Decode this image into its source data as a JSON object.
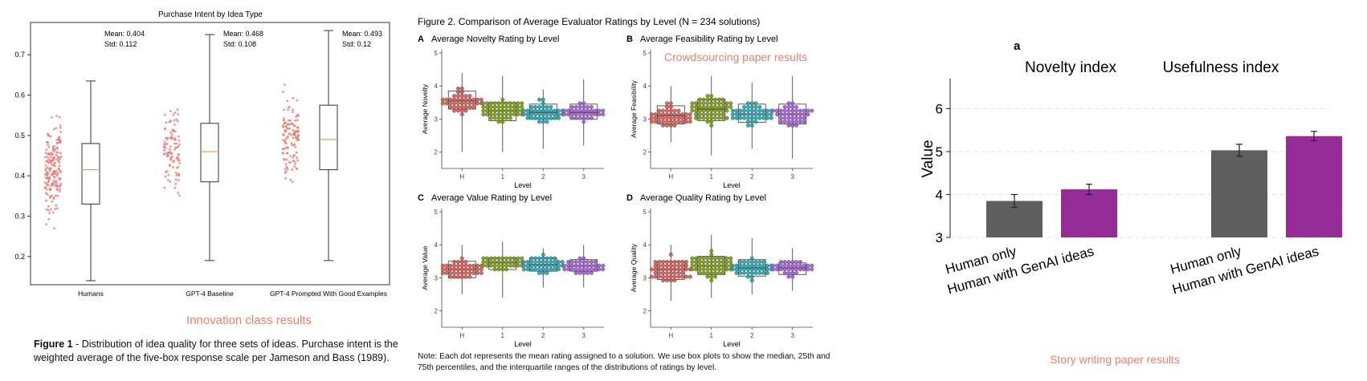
{
  "colors": {
    "red_label": "#e8836b",
    "box_red": "#d9574e",
    "olive": "#7a9a0c",
    "teal": "#1fa5b2",
    "purple": "#a35ad6",
    "gray_bar": "#5f5f5f",
    "magenta_bar": "#952c97",
    "scatter_red": "#e8746c",
    "median_orange": "#f0a050"
  },
  "figure1": {
    "title": "Purchase Intent by Idea Type",
    "label": "Innovation class results",
    "caption_bold": "Figure 1",
    "caption": " - Distribution of idea quality for three sets of ideas. Purchase intent is the weighted average of the five-box response scale per Jameson and Bass (1989).",
    "groups": [
      {
        "name": "Humans",
        "mean": "Mean: 0.404",
        "std": "Std: 0.112"
      },
      {
        "name": "GPT-4 Baseline",
        "mean": "Mean: 0.468",
        "std": "Std: 0.108"
      },
      {
        "name": "GPT-4 Prompted With Good Examples",
        "mean": "Mean: 0.493",
        "std": "Std: 0.12"
      }
    ]
  },
  "figure2": {
    "title": "Figure 2. Comparison of Average Evaluator Ratings by Level (N = 234 solutions)",
    "label": "Crowdsourcing paper results",
    "note": "Note: Each dot represents the mean rating assigned to a solution. We use box plots to show the median, 25th and 75th percentiles, and the interquartile ranges of the distributions of ratings by level.",
    "panels": [
      {
        "letter": "A",
        "title": "Average Novelty Rating by Level",
        "ylabel": "Average Novelty",
        "xlabel": "Level"
      },
      {
        "letter": "B",
        "title": "Average Feasibility Rating by Level",
        "ylabel": "Average Feasibility",
        "xlabel": "Level"
      },
      {
        "letter": "C",
        "title": "Average Value Rating by Level",
        "ylabel": "Average Value",
        "xlabel": "Level"
      },
      {
        "letter": "D",
        "title": "Average Quality Rating by Level",
        "ylabel": "Average Quality",
        "xlabel": "Level"
      }
    ]
  },
  "figure3": {
    "panel_letter": "a",
    "label": "Story writing paper results",
    "ylabel": "Value",
    "groups": [
      {
        "title": "Novelty index"
      },
      {
        "title": "Usefulness index"
      }
    ]
  },
  "chart_data": [
    {
      "type": "box",
      "title": "Purchase Intent by Idea Type",
      "categories": [
        "Humans",
        "GPT-4 Baseline",
        "GPT-4 Prompted With Good Examples"
      ],
      "ylim": [
        0.13,
        0.78
      ],
      "yticks": [
        0.2,
        0.3,
        0.4,
        0.5,
        0.6,
        0.7
      ],
      "boxes": [
        {
          "whisker_low": 0.14,
          "q1": 0.33,
          "median": 0.415,
          "q3": 0.48,
          "whisker_high": 0.635,
          "points_low": 0.15,
          "points_high": 0.64,
          "n": 180
        },
        {
          "whisker_low": 0.19,
          "q1": 0.385,
          "median": 0.46,
          "q3": 0.53,
          "whisker_high": 0.75,
          "points_low": 0.19,
          "points_high": 0.75,
          "n": 100
        },
        {
          "whisker_low": 0.19,
          "q1": 0.415,
          "median": 0.49,
          "q3": 0.575,
          "whisker_high": 0.76,
          "points_low": 0.19,
          "points_high": 0.76,
          "n": 120
        }
      ],
      "grid": false
    },
    {
      "type": "box",
      "panel": "A",
      "categories": [
        "H",
        "1",
        "2",
        "3"
      ],
      "ylim": [
        1.5,
        5.1
      ],
      "yticks": [
        2,
        3,
        4,
        5
      ],
      "boxes": [
        {
          "whisker_low": 2.0,
          "q1": 3.3,
          "median": 3.55,
          "q3": 3.85,
          "whisker_high": 4.4
        },
        {
          "whisker_low": 2.0,
          "q1": 2.95,
          "median": 3.25,
          "q3": 3.5,
          "whisker_high": 4.3
        },
        {
          "whisker_low": 2.1,
          "q1": 3.0,
          "median": 3.2,
          "q3": 3.45,
          "whisker_high": 3.9
        },
        {
          "whisker_low": 2.2,
          "q1": 3.0,
          "median": 3.2,
          "q3": 3.45,
          "whisker_high": 4.2
        }
      ]
    },
    {
      "type": "box",
      "panel": "B",
      "categories": [
        "H",
        "1",
        "2",
        "3"
      ],
      "ylim": [
        1.5,
        5.1
      ],
      "yticks": [
        2,
        3,
        4,
        5
      ],
      "boxes": [
        {
          "whisker_low": 2.3,
          "q1": 2.85,
          "median": 3.1,
          "q3": 3.4,
          "whisker_high": 4.0
        },
        {
          "whisker_low": 1.9,
          "q1": 2.95,
          "median": 3.3,
          "q3": 3.6,
          "whisker_high": 4.3
        },
        {
          "whisker_low": 2.1,
          "q1": 2.9,
          "median": 3.15,
          "q3": 3.45,
          "whisker_high": 4.1
        },
        {
          "whisker_low": 1.8,
          "q1": 2.85,
          "median": 3.15,
          "q3": 3.45,
          "whisker_high": 4.3
        }
      ]
    },
    {
      "type": "box",
      "panel": "C",
      "categories": [
        "H",
        "1",
        "2",
        "3"
      ],
      "ylim": [
        1.5,
        5.1
      ],
      "yticks": [
        2,
        3,
        4,
        5
      ],
      "boxes": [
        {
          "whisker_low": 2.5,
          "q1": 3.0,
          "median": 3.25,
          "q3": 3.5,
          "whisker_high": 4.0
        },
        {
          "whisker_low": 2.4,
          "q1": 3.25,
          "median": 3.45,
          "q3": 3.6,
          "whisker_high": 4.1
        },
        {
          "whisker_low": 2.7,
          "q1": 3.2,
          "median": 3.4,
          "q3": 3.6,
          "whisker_high": 3.9
        },
        {
          "whisker_low": 2.7,
          "q1": 3.2,
          "median": 3.35,
          "q3": 3.55,
          "whisker_high": 4.0
        }
      ]
    },
    {
      "type": "box",
      "panel": "D",
      "categories": [
        "H",
        "1",
        "2",
        "3"
      ],
      "ylim": [
        1.5,
        5.1
      ],
      "yticks": [
        2,
        3,
        4,
        5
      ],
      "boxes": [
        {
          "whisker_low": 2.3,
          "q1": 2.95,
          "median": 3.25,
          "q3": 3.5,
          "whisker_high": 4.0
        },
        {
          "whisker_low": 2.4,
          "q1": 3.1,
          "median": 3.35,
          "q3": 3.65,
          "whisker_high": 4.3
        },
        {
          "whisker_low": 2.5,
          "q1": 3.05,
          "median": 3.3,
          "q3": 3.55,
          "whisker_high": 4.2
        },
        {
          "whisker_low": 2.6,
          "q1": 3.1,
          "median": 3.3,
          "q3": 3.45,
          "whisker_high": 3.9
        }
      ]
    },
    {
      "type": "bar",
      "panel": "a",
      "groups": [
        "Novelty index",
        "Usefulness index"
      ],
      "categories": [
        "Human only",
        "Human with GenAI ideas"
      ],
      "ylabel": "Value",
      "ylim": [
        3,
        6.7
      ],
      "yticks": [
        3,
        4,
        5,
        6
      ],
      "values": [
        [
          3.85,
          4.12
        ],
        [
          5.03,
          5.36
        ]
      ],
      "errors": [
        [
          0.15,
          0.12
        ],
        [
          0.14,
          0.11
        ]
      ],
      "grid": true
    }
  ]
}
